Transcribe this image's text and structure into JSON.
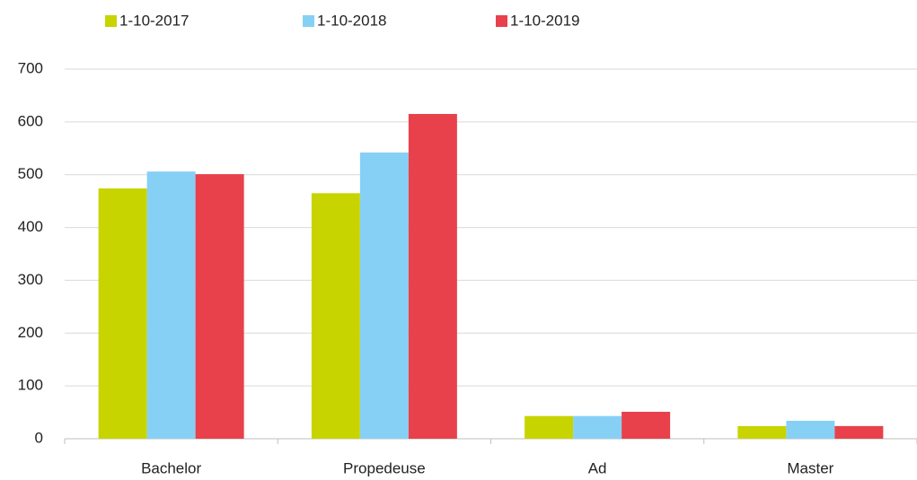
{
  "chart_data": {
    "type": "bar",
    "categories": [
      "Bachelor",
      "Propedeuse",
      "Ad",
      "Master"
    ],
    "series": [
      {
        "name": "1-10-2017",
        "color": "#c8d400",
        "values": [
          474,
          465,
          43,
          24
        ]
      },
      {
        "name": "1-10-2018",
        "color": "#87d0f5",
        "values": [
          506,
          542,
          43,
          34
        ]
      },
      {
        "name": "1-10-2019",
        "color": "#e8414b",
        "values": [
          501,
          615,
          51,
          24
        ]
      }
    ],
    "ylim": [
      0,
      700
    ],
    "yticks": [
      0,
      100,
      200,
      300,
      400,
      500,
      600,
      700
    ],
    "grid": true,
    "legend": "top"
  }
}
